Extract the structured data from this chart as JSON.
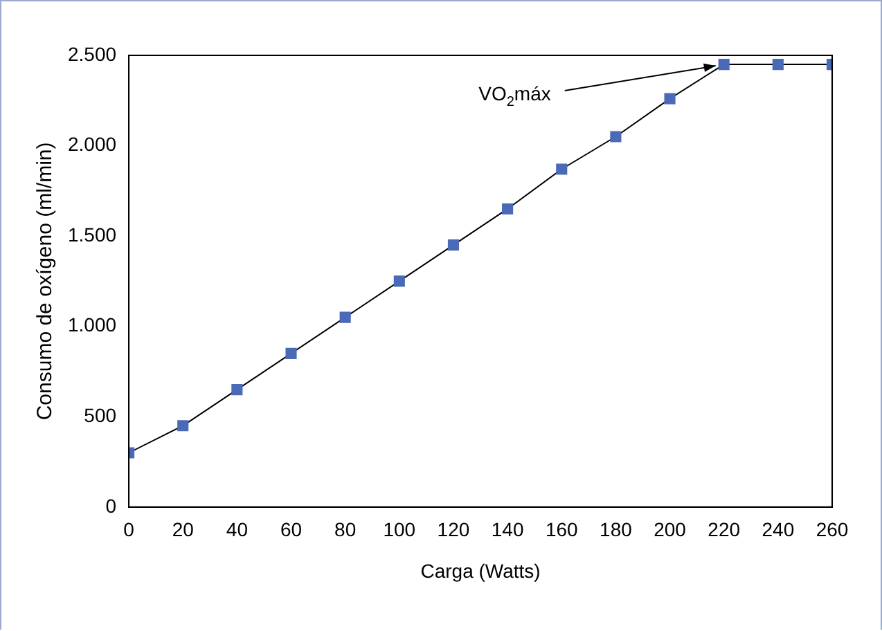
{
  "chart_data": {
    "type": "line",
    "xlabel": "Carga (Watts)",
    "ylabel": "Consumo de oxígeno (ml/min)",
    "x": [
      0,
      20,
      40,
      60,
      80,
      100,
      120,
      140,
      160,
      180,
      200,
      220,
      240,
      260
    ],
    "series": [
      {
        "color": "#4a6ab8",
        "values": [
          300,
          450,
          650,
          850,
          1050,
          1250,
          1450,
          1650,
          1870,
          2050,
          2260,
          2450,
          2450,
          2450
        ]
      }
    ],
    "xlim": [
      0,
      260
    ],
    "xticks": [
      0,
      20,
      40,
      60,
      80,
      100,
      120,
      140,
      160,
      180,
      200,
      220,
      240,
      260
    ],
    "ylim": [
      0,
      2500
    ],
    "yticks": [
      0,
      500,
      {
        "value": 1000,
        "label": "1.000"
      },
      {
        "value": 1500,
        "label": "1.500"
      },
      {
        "value": 2000,
        "label": "2.000"
      },
      {
        "value": 2500,
        "label": "2.500"
      }
    ],
    "annotations": [
      {
        "text": "VO$_{2}$máx",
        "x": 220,
        "y": 2450
      }
    ],
    "grid": false,
    "legend": false,
    "marker": "square",
    "line_style": "solid"
  }
}
